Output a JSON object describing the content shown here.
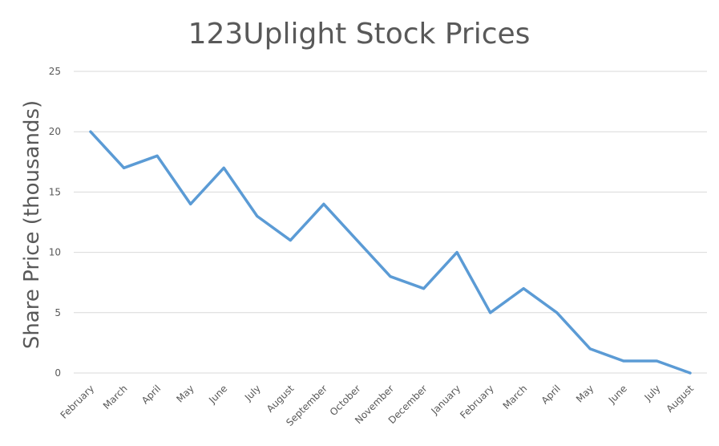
{
  "chart_data": {
    "type": "line",
    "title": "123Uplight Stock Prices",
    "xlabel": "",
    "ylabel": "Share Price (thousands)",
    "ylim": [
      0,
      25
    ],
    "yticks": [
      0,
      5,
      10,
      15,
      20,
      25
    ],
    "grid": true,
    "legend": "none",
    "categories": [
      "February",
      "March",
      "April",
      "May",
      "June",
      "July",
      "August",
      "September",
      "October",
      "November",
      "December",
      "January",
      "February",
      "March",
      "April",
      "May",
      "June",
      "July",
      "August"
    ],
    "series": [
      {
        "values": [
          20,
          17,
          18,
          14,
          17,
          13,
          11,
          14,
          11,
          8,
          7,
          10,
          5,
          7,
          5,
          2,
          1,
          1,
          0
        ],
        "color": "#5b9bd5"
      }
    ]
  }
}
